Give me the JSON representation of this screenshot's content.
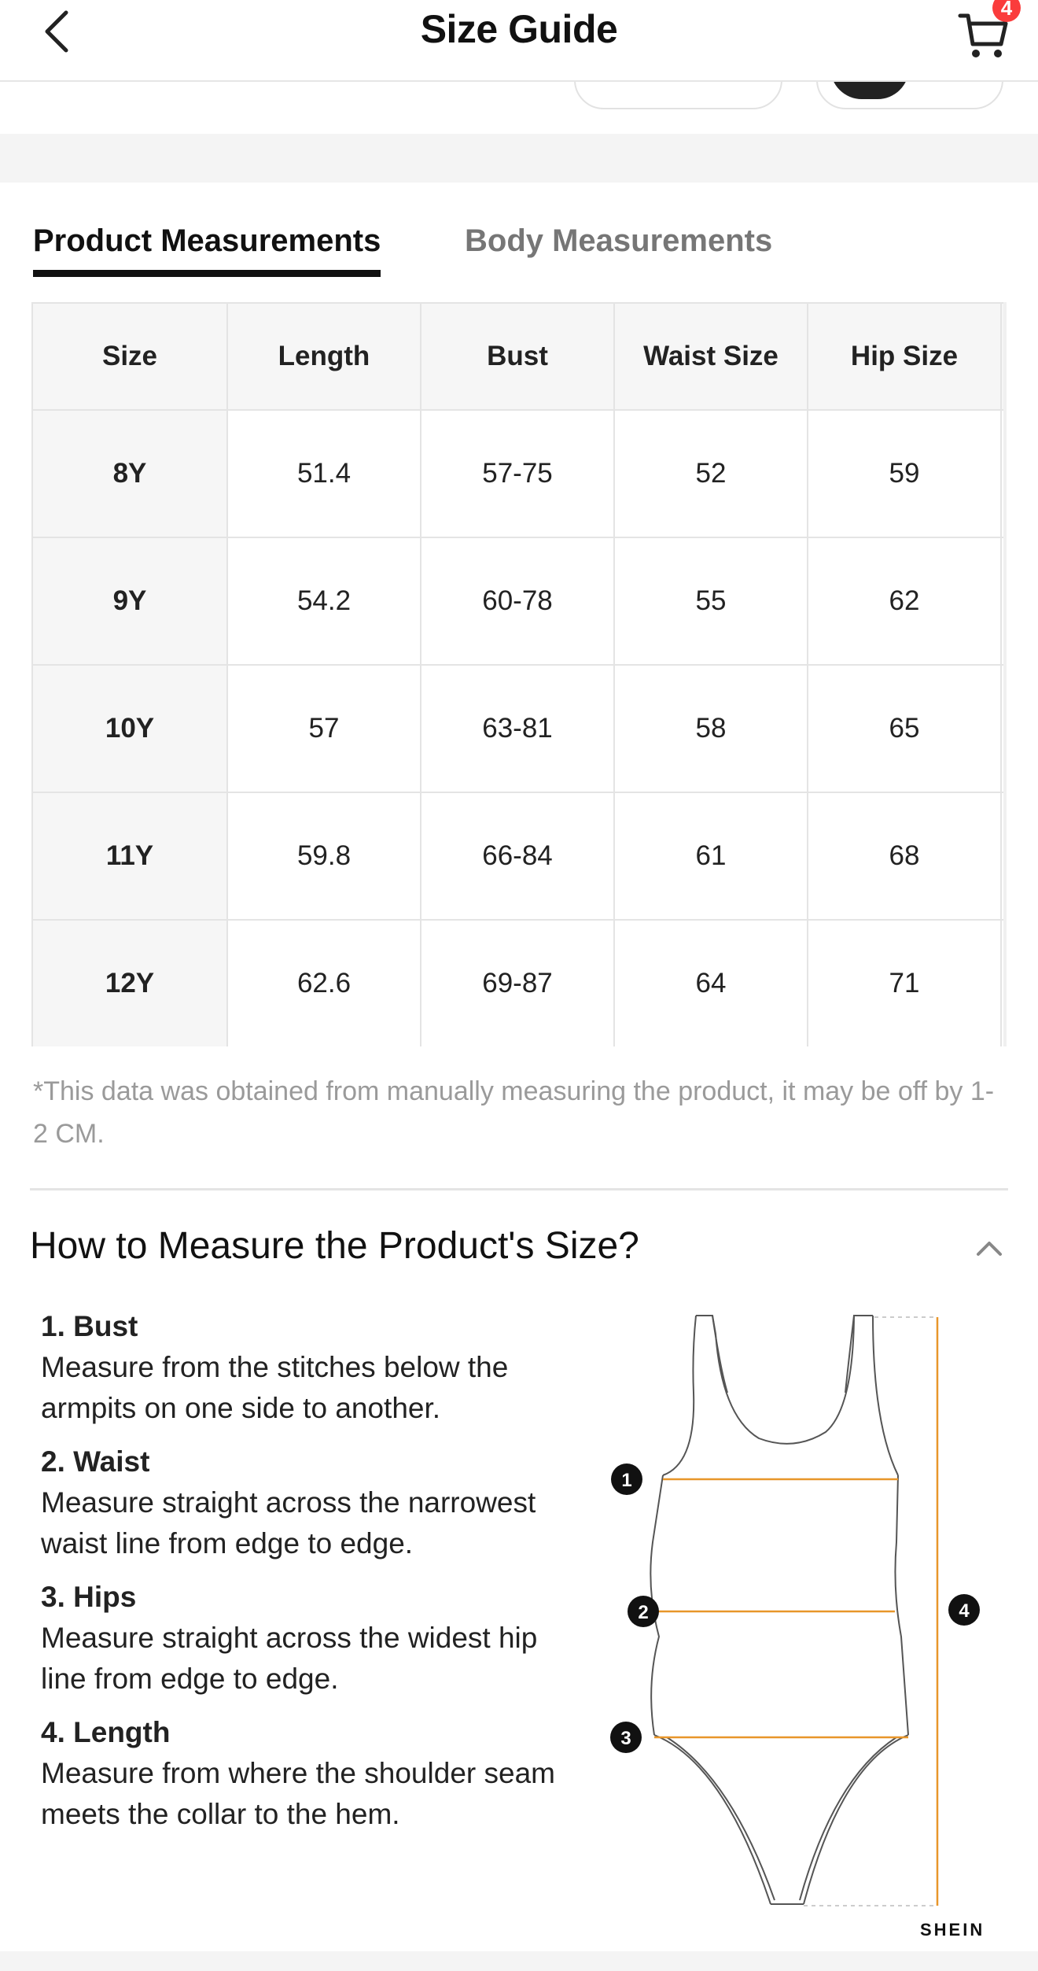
{
  "header": {
    "title": "Size Guide",
    "cart_count": "4"
  },
  "tabs": [
    {
      "label": "Product Measurements",
      "active": true
    },
    {
      "label": "Body Measurements",
      "active": false
    }
  ],
  "table": {
    "columns": [
      "Size",
      "Length",
      "Bust",
      "Waist Size",
      "Hip Size"
    ],
    "rows": [
      [
        "8Y",
        "51.4",
        "57-75",
        "52",
        "59"
      ],
      [
        "9Y",
        "54.2",
        "60-78",
        "55",
        "62"
      ],
      [
        "10Y",
        "57",
        "63-81",
        "58",
        "65"
      ],
      [
        "11Y",
        "59.8",
        "66-84",
        "61",
        "68"
      ],
      [
        "12Y",
        "62.6",
        "69-87",
        "64",
        "71"
      ]
    ]
  },
  "note": "*This data was obtained from manually measuring the product, it may be off by 1-2 CM.",
  "how_to": {
    "title": "How to Measure the Product's Size?",
    "steps": [
      {
        "title": "1. Bust",
        "desc": "Measure from the stitches below the armpits on one side to another."
      },
      {
        "title": "2. Waist",
        "desc": "Measure straight across the narrowest waist line from edge to edge."
      },
      {
        "title": "3. Hips",
        "desc": "Measure straight across the widest hip line from edge to edge."
      },
      {
        "title": "4. Length",
        "desc": "Measure from where the shoulder seam meets the collar to the hem."
      }
    ],
    "markers": [
      "1",
      "2",
      "3",
      "4"
    ],
    "brand": "SHEIN",
    "accent_color": "#e8962a"
  }
}
